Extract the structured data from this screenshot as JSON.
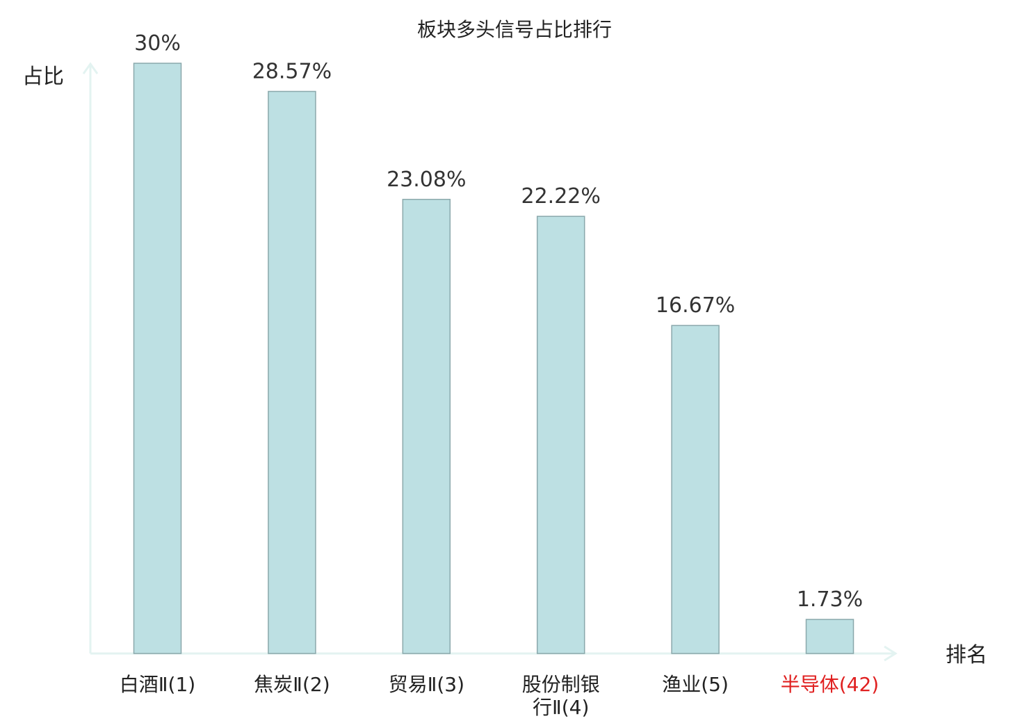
{
  "chart_data": {
    "type": "bar",
    "title": "板块多头信号占比排行",
    "ylabel": "占比",
    "xlabel": "排名",
    "categories": [
      "白酒Ⅱ(1)",
      "焦炭Ⅱ(2)",
      "贸易Ⅱ(3)",
      "股份制银行Ⅱ(4)",
      "渔业(5)",
      "半导体(42)"
    ],
    "category_lines": [
      [
        "白酒Ⅱ(1)"
      ],
      [
        "焦炭Ⅱ(2)"
      ],
      [
        "贸易Ⅱ(3)"
      ],
      [
        "股份制银",
        "行Ⅱ(4)"
      ],
      [
        "渔业(5)"
      ],
      [
        "半导体(42)"
      ]
    ],
    "values": [
      30,
      28.57,
      23.08,
      22.22,
      16.67,
      1.73
    ],
    "value_labels": [
      "30%",
      "28.57%",
      "23.08%",
      "22.22%",
      "16.67%",
      "1.73%"
    ],
    "highlight_index": 5,
    "ylim": [
      0,
      30
    ],
    "grid": false,
    "colors": {
      "bar_fill": "#bde0e3",
      "bar_stroke": "#8aa8ab",
      "axis": "#e3f3f1",
      "highlight_text": "#e02020",
      "text": "#222222"
    }
  }
}
